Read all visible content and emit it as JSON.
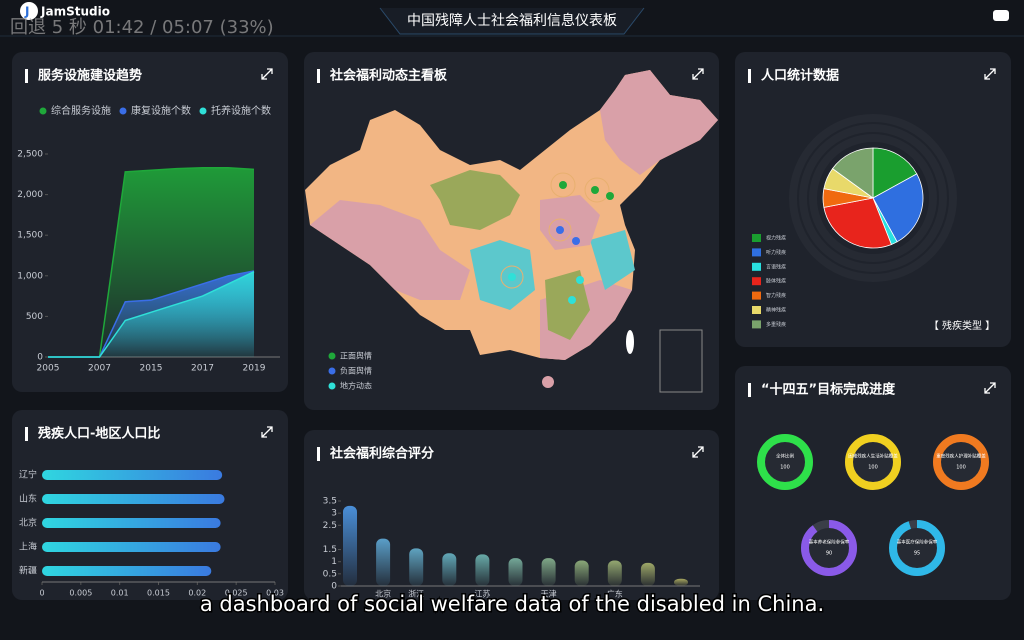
{
  "header": {
    "logo": "JamStudio",
    "title": "中国残障人士社会福利信息仪表板",
    "player_overlay": "回退 5 秒 01:42 / 05:07 (33%)"
  },
  "caption": "a dashboard of social welfare data of the disabled in China.",
  "chart_data": [
    {
      "type": "area",
      "title": "服务设施建设趋势",
      "categories": [
        "2005",
        null,
        "2007",
        null,
        "2015",
        null,
        "2017",
        null,
        "2019"
      ],
      "series": [
        {
          "name": "综合服务设施",
          "color": "#1fa83a",
          "values": [
            0,
            0,
            0,
            2280,
            2300,
            2320,
            2330,
            2330,
            2310
          ]
        },
        {
          "name": "康复设施个数",
          "color": "#3a6ee8",
          "values": [
            0,
            0,
            0,
            680,
            700,
            800,
            900,
            1000,
            1060
          ]
        },
        {
          "name": "托养设施个数",
          "color": "#2fe0d8",
          "values": [
            0,
            0,
            0,
            450,
            550,
            650,
            750,
            900,
            1050
          ]
        }
      ],
      "ylim": [
        0,
        2500
      ],
      "yticks": [
        0,
        500,
        {
          "value": 1000,
          "label": "1,000"
        },
        {
          "value": 1500,
          "label": "1,500"
        },
        {
          "value": 2000,
          "label": "2,000"
        },
        {
          "value": 2500,
          "label": "2,500"
        }
      ]
    },
    {
      "type": "hbar",
      "title": "残疾人口-地区人口比",
      "categories": [
        "辽宁",
        "山东",
        "北京",
        "上海",
        "新疆"
      ],
      "values": [
        0.0232,
        0.0235,
        0.023,
        0.023,
        0.0218
      ],
      "color": "#2fd6e0",
      "xlim": [
        0,
        0.03
      ],
      "xticks": [
        0,
        0.005,
        0.01,
        0.015,
        0.02,
        0.025,
        0.03
      ]
    },
    {
      "type": "map",
      "title": "社会福利动态主看板",
      "series": [
        {
          "name": "正面舆情",
          "color": "#1fa83a"
        },
        {
          "name": "负面舆情",
          "color": "#3a6ee8"
        },
        {
          "name": "地方动态",
          "color": "#2fe0d8"
        }
      ]
    },
    {
      "type": "pie",
      "title": "人口统计数据",
      "button": "【 残疾类型 】",
      "categories": [
        "视力残疾",
        "听力残疾",
        "言语残疾",
        "肢体残疾",
        "智力残疾",
        "精神残疾",
        "多重残疾"
      ],
      "values": [
        17,
        25,
        2,
        28,
        6,
        7,
        15
      ],
      "colors": [
        "#1a9e2f",
        "#2f6fe0",
        "#29e0e0",
        "#e8241c",
        "#f06a10",
        "#e8d96a",
        "#7aa36c"
      ]
    },
    {
      "type": "bar",
      "title": "社会福利综合评分",
      "categories": [
        null,
        "北京",
        "浙江",
        null,
        "江苏",
        null,
        "天津",
        null,
        "广东",
        null,
        null
      ],
      "values": [
        3.3,
        1.95,
        1.55,
        1.35,
        1.3,
        1.15,
        1.15,
        1.05,
        1.05,
        0.95,
        0.3
      ],
      "colors": [
        "#4a8fd8",
        "#5a9ec8",
        "#5fa3c0",
        "#62a8b8",
        "#68aaa8",
        "#74a898",
        "#80a888",
        "#8aa878",
        "#94a870",
        "#9ea868",
        "#a8a860"
      ],
      "ylim": [
        0,
        3.5
      ],
      "yticks": [
        0,
        0.5,
        1,
        1.5,
        2.5,
        3,
        3.5
      ]
    },
    {
      "type": "gauge",
      "title": "“十四五”目标完成进度",
      "categories": [
        "全体比例",
        "困难残疾人生活补贴覆盖",
        "重度残疾人护理补贴覆盖",
        "基本养老保险参保率",
        "基本医疗保险参保率"
      ],
      "values": [
        100,
        100,
        100,
        90,
        95
      ],
      "colors": [
        "#2ee04a",
        "#f0d020",
        "#f07a20",
        "#8a5ae8",
        "#2fb8e8"
      ],
      "ylim": [
        0,
        100
      ]
    }
  ]
}
